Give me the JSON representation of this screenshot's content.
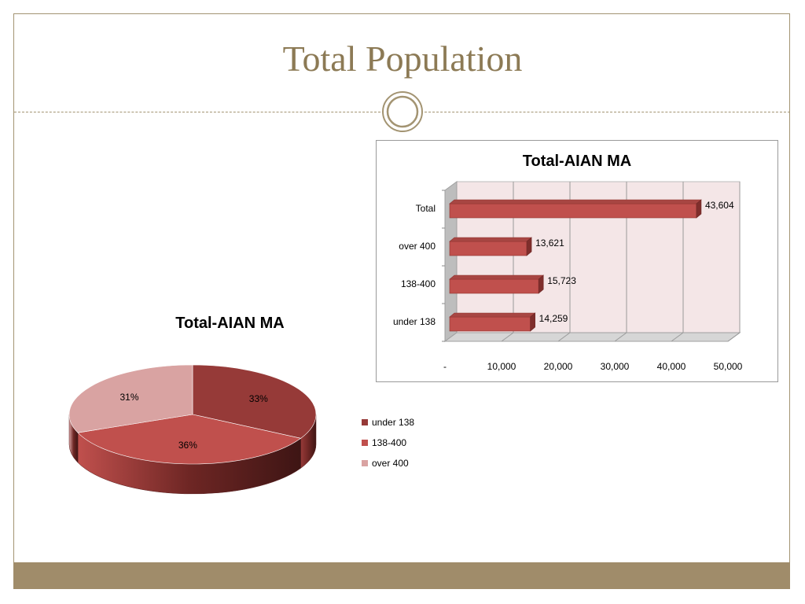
{
  "slide": {
    "title": "Total Population"
  },
  "colors": {
    "frame": "#a39472",
    "title": "#8c7a55",
    "footer": "#a08c6a",
    "bar": "#c0504d",
    "plot_bg": "#f4e6e7"
  },
  "chart_data": [
    {
      "type": "bar",
      "orientation": "horizontal",
      "title": "Total-AIAN MA",
      "categories": [
        "under 138",
        "138-400",
        "over 400",
        "Total"
      ],
      "values": [
        14259,
        15723,
        13621,
        43604
      ],
      "value_labels": [
        "14,259",
        "15,723",
        "13,621",
        "43,604"
      ],
      "xlim": [
        0,
        50000
      ],
      "x_ticks": [
        "-",
        "10,000",
        "20,000",
        "30,000",
        "40,000",
        "50,000"
      ],
      "grid": true,
      "three_d": true
    },
    {
      "type": "pie",
      "title": "Total-AIAN MA",
      "labels": [
        "under 138",
        "138-400",
        "over 400"
      ],
      "percent_labels": [
        "33%",
        "36%",
        "31%"
      ],
      "values": [
        33,
        36,
        31
      ],
      "colors": [
        "#963a38",
        "#c0504d",
        "#d9a3a2"
      ],
      "legend_position": "right",
      "three_d": true
    }
  ]
}
